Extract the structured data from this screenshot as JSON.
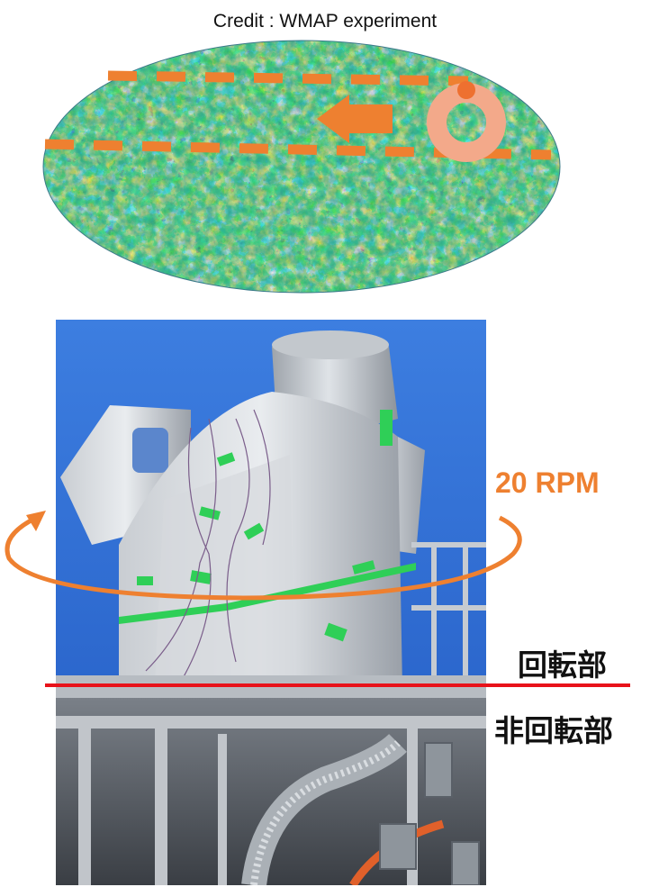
{
  "credit": "Credit : WMAP experiment",
  "rotation_speed": "20 RPM",
  "rotating_part_label": "回転部",
  "non_rotating_part_label": "非回転部",
  "colors": {
    "orange_marker": "#ee8030",
    "divider_line": "#e8121a",
    "sky_blue": "#2f6fd8"
  }
}
